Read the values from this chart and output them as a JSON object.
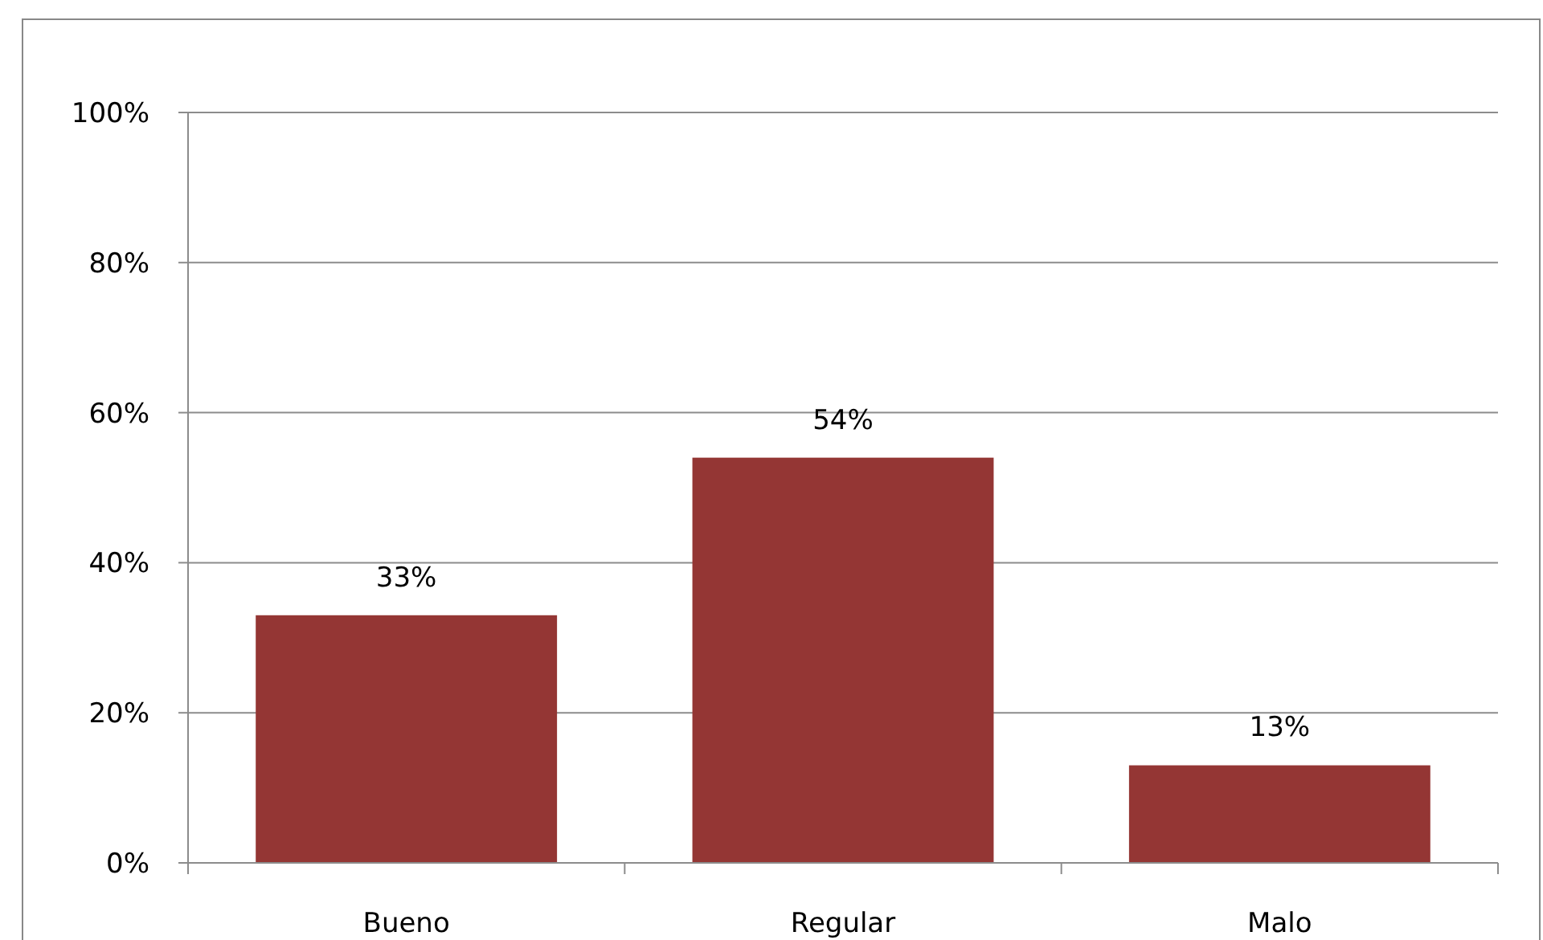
{
  "chart_data": {
    "type": "bar",
    "categories": [
      "Bueno",
      "Regular",
      "Malo"
    ],
    "values": [
      33,
      54,
      13
    ],
    "value_labels": [
      "33%",
      "54%",
      "13%"
    ],
    "color": "#943634",
    "ylim": [
      0,
      100
    ],
    "yticks": [
      {
        "value": 0,
        "label": "0%"
      },
      {
        "value": 20,
        "label": "20%"
      },
      {
        "value": 40,
        "label": "40%"
      },
      {
        "value": 60,
        "label": "60%"
      },
      {
        "value": 80,
        "label": "80%"
      },
      {
        "value": 100,
        "label": "100%"
      }
    ],
    "grid": "y"
  }
}
